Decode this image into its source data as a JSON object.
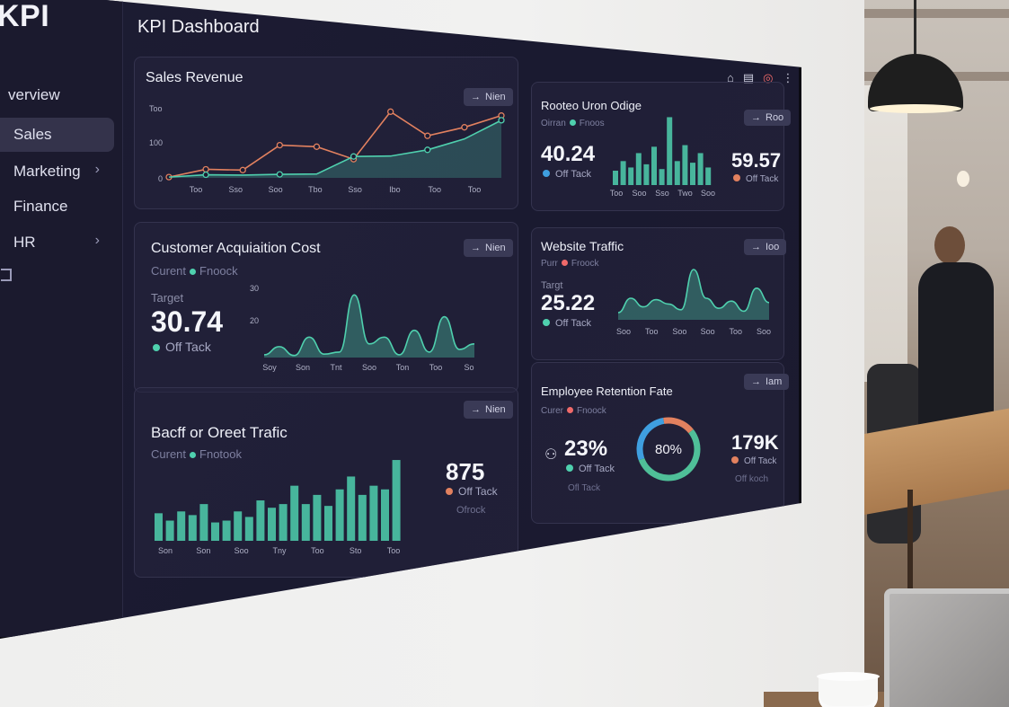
{
  "app": {
    "brand": "KPI",
    "title": "KPI Dashboard"
  },
  "sidebar": {
    "items": [
      {
        "label": "verview",
        "active": false,
        "chevron": false
      },
      {
        "label": "Sales",
        "active": true,
        "chevron": false
      },
      {
        "label": "Marketing",
        "active": false,
        "chevron": true
      },
      {
        "label": "Finance",
        "active": false,
        "chevron": false
      },
      {
        "label": "HR",
        "active": false,
        "chevron": true
      }
    ],
    "chevron_glyph": "›"
  },
  "top_icons": [
    "home-icon",
    "clipboard-icon",
    "target-icon",
    "more-vertical-icon"
  ],
  "cards": {
    "sales_revenue": {
      "title": "Sales Revenue",
      "button": "Nien",
      "y_ticks": [
        "Too",
        "100",
        "0"
      ],
      "x_ticks": [
        "Too",
        "Sso",
        "Soo",
        "Tbo",
        "Sso",
        "Ibo",
        "Too",
        "Too"
      ]
    },
    "top_right": {
      "title": "Rooteo Uron Odige",
      "sub_left": "Oirran",
      "sub_right": "Fnoos",
      "button": "Roo",
      "value_left": "40.24",
      "status_left": "Off Tack",
      "value_right": "59.57",
      "status_right": "Off Tack",
      "x_ticks": [
        "Too",
        "Soo",
        "Sso",
        "Two",
        "Soo"
      ]
    },
    "cac": {
      "title": "Customer Acquiaition Cost",
      "sub_left": "Curent",
      "sub_right": "Fnoock",
      "button": "Nien",
      "target_label": "Target",
      "value": "30.74",
      "status": "Off Tack",
      "y_ticks": [
        "30",
        "20"
      ],
      "x_ticks": [
        "Soy",
        "Son",
        "Tnt",
        "Soo",
        "Ton",
        "Too",
        "So"
      ]
    },
    "website_traffic": {
      "title": "Website Traffic",
      "sub_left": "Purr",
      "sub_right": "Froock",
      "button": "Ioo",
      "target_label": "Targt",
      "value": "25.22",
      "status": "Off Tack",
      "x_ticks": [
        "Soo",
        "Too",
        "Soo",
        "Soo",
        "Too",
        "Soo"
      ]
    },
    "traffic": {
      "title": "Bacff or Oreet Trafic",
      "sub_left": "Curent",
      "sub_right": "Fnotook",
      "button": "Nien",
      "value": "875",
      "status": "Off Tack",
      "status2": "Ofrock",
      "x_ticks": [
        "Son",
        "Son",
        "Soo",
        "Tny",
        "Too",
        "Sto",
        "Too"
      ]
    },
    "retention": {
      "title": "Employee Retention Fate",
      "sub_left": "Curer",
      "sub_right": "Fnoock",
      "button": "Iam",
      "value_left": "23%",
      "status_left": "Off Tack",
      "status_left2": "Ofl Tack",
      "donut_label": "80%",
      "value_right": "179K",
      "status_right": "Off Tack",
      "status_right2": "Off koch"
    }
  },
  "chart_data": [
    {
      "type": "line",
      "name": "sales-revenue",
      "series": [
        {
          "values": [
            2,
            22,
            20,
            84,
            80,
            48,
            170,
            108,
            130,
            160
          ]
        },
        {
          "values": [
            2,
            8,
            7,
            9,
            10,
            55,
            56,
            72,
            100,
            148
          ]
        }
      ],
      "area_series_index": 1,
      "colors": {
        "line_a": "#e2815f",
        "line_b": "#4fd0ae"
      }
    },
    {
      "type": "bar",
      "name": "top-right-bars",
      "values": [
        18,
        30,
        22,
        40,
        26,
        48,
        20,
        85,
        30,
        50,
        28,
        40,
        22
      ]
    },
    {
      "type": "area",
      "name": "cac-area",
      "values": [
        4,
        16,
        3,
        30,
        5,
        8,
        92,
        20,
        30,
        4,
        40,
        8,
        60,
        12,
        20
      ]
    },
    {
      "type": "area",
      "name": "website-traffic-area",
      "values": [
        10,
        30,
        18,
        28,
        22,
        14,
        70,
        30,
        16,
        26,
        12,
        44,
        24
      ]
    },
    {
      "type": "bar",
      "name": "traffic-bars",
      "values": [
        30,
        22,
        32,
        28,
        40,
        20,
        22,
        32,
        26,
        44,
        36,
        40,
        60,
        40,
        50,
        38,
        56,
        70,
        50,
        60,
        56,
        88
      ]
    },
    {
      "type": "pie",
      "name": "retention-donut",
      "slices": [
        {
          "value": 55,
          "color": "#4fbf98"
        },
        {
          "value": 28,
          "color": "#3f9fe0"
        },
        {
          "value": 17,
          "color": "#e2815f"
        }
      ]
    }
  ],
  "colors": {
    "accent": "#4fd0ae",
    "warn": "#e2815f",
    "blue": "#3f9fe0"
  }
}
